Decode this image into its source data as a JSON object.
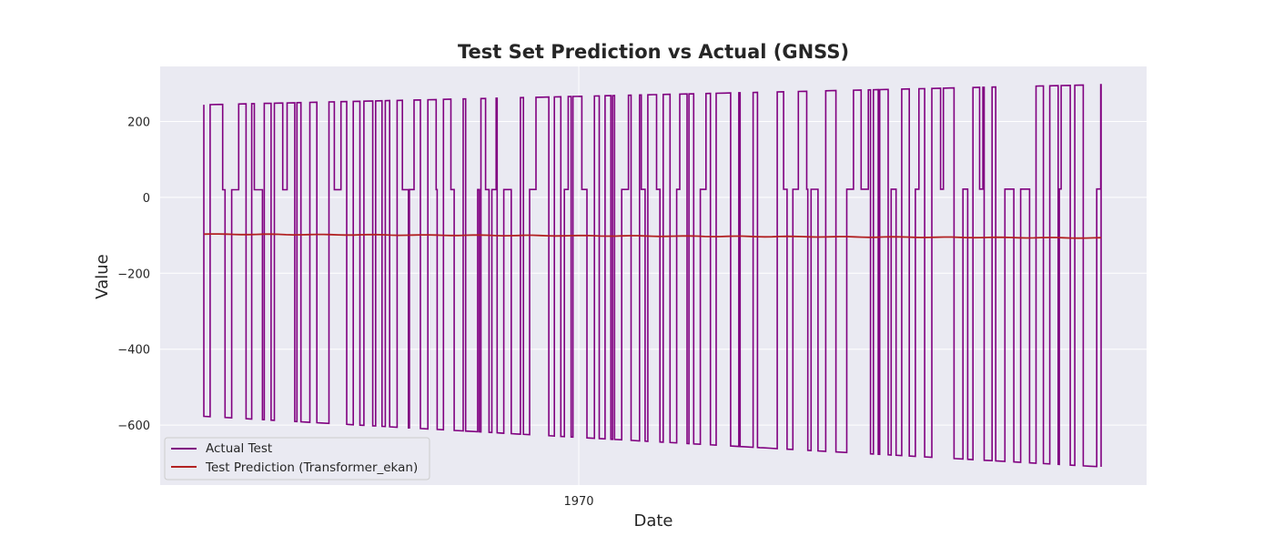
{
  "chart_data": {
    "type": "line",
    "title": "Test Set Prediction vs Actual (GNSS)",
    "xlabel": "Date",
    "ylabel": "Value",
    "x_ticks": [
      {
        "label": "1970"
      }
    ],
    "y_ticks": [
      200,
      0,
      -200,
      -400,
      -600
    ],
    "ylim": [
      -758,
      345
    ],
    "grid": true,
    "legend_position": "lower-left",
    "series": [
      {
        "name": "Actual Test",
        "color": "#800080",
        "pattern": "square wave alternating between three levels",
        "high_start": 244,
        "high_end": 297,
        "mid_start": 20,
        "mid_end": 22,
        "low_start": -577,
        "low_end": -710
      },
      {
        "name": "Test Prediction (Transformer_ekan)",
        "color": "#b22222",
        "start": -97,
        "end": -107
      }
    ]
  }
}
